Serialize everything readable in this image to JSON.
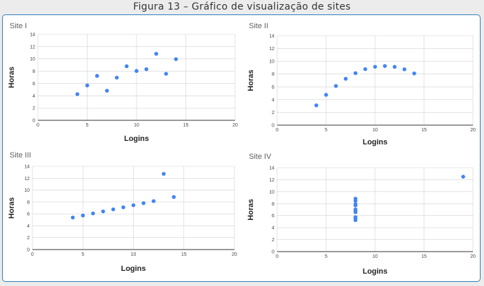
{
  "caption": "Figura 13 – Gráfico de visualização de sites",
  "colors": {
    "point": "#4285f4",
    "grid": "#d0d0d0",
    "frame": "#2d7eb8"
  },
  "chart_data": [
    {
      "type": "scatter",
      "title": "Site I",
      "xlabel": "Logins",
      "ylabel": "Horas",
      "xlim": [
        0,
        20
      ],
      "ylim": [
        0,
        14
      ],
      "xticks": [
        0,
        5,
        10,
        15,
        20
      ],
      "yticks": [
        0,
        2,
        4,
        6,
        8,
        10,
        12,
        14
      ],
      "grid": true,
      "x": [
        4,
        5,
        6,
        7,
        8,
        9,
        10,
        11,
        12,
        13,
        14
      ],
      "y": [
        4.26,
        5.68,
        7.24,
        4.82,
        6.95,
        8.81,
        8.04,
        8.33,
        10.84,
        7.58,
        9.96
      ]
    },
    {
      "type": "scatter",
      "title": "Site II",
      "xlabel": "Logins",
      "ylabel": "Horas",
      "xlim": [
        0,
        20
      ],
      "ylim": [
        0,
        14
      ],
      "xticks": [
        0,
        5,
        10,
        15,
        20
      ],
      "yticks": [
        0,
        2,
        4,
        6,
        8,
        10,
        12,
        14
      ],
      "grid": true,
      "x": [
        4,
        5,
        6,
        7,
        8,
        9,
        10,
        11,
        12,
        13,
        14
      ],
      "y": [
        3.1,
        4.74,
        6.13,
        7.26,
        8.14,
        8.77,
        9.14,
        9.26,
        9.13,
        8.74,
        8.1
      ]
    },
    {
      "type": "scatter",
      "title": "Site III",
      "xlabel": "Logins",
      "ylabel": "Horas",
      "xlim": [
        0,
        20
      ],
      "ylim": [
        0,
        14
      ],
      "xticks": [
        0,
        5,
        10,
        15,
        20
      ],
      "yticks": [
        0,
        2,
        4,
        6,
        8,
        10,
        12,
        14
      ],
      "grid": true,
      "x": [
        4,
        5,
        6,
        7,
        8,
        9,
        10,
        11,
        12,
        13,
        14
      ],
      "y": [
        5.39,
        5.73,
        6.08,
        6.42,
        6.77,
        7.11,
        7.46,
        7.81,
        8.15,
        12.74,
        8.84
      ]
    },
    {
      "type": "scatter",
      "title": "Site IV",
      "xlabel": "Logins",
      "ylabel": "Horas",
      "xlim": [
        0,
        20
      ],
      "ylim": [
        0,
        14
      ],
      "xticks": [
        0,
        5,
        10,
        15,
        20
      ],
      "yticks": [
        0,
        2,
        4,
        6,
        8,
        10,
        12,
        14
      ],
      "grid": true,
      "x": [
        8,
        8,
        8,
        8,
        8,
        8,
        8,
        8,
        8,
        8,
        19
      ],
      "y": [
        6.58,
        5.76,
        7.71,
        8.84,
        8.47,
        7.04,
        5.25,
        5.56,
        7.91,
        6.89,
        12.5
      ]
    }
  ]
}
